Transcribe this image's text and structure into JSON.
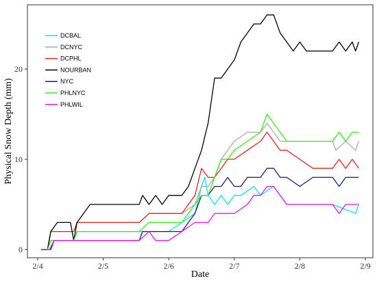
{
  "chart_data": {
    "type": "line",
    "xlabel": "Date",
    "ylabel": "Physical Snow Depth (mm)",
    "x_ticks": [
      "2/4",
      "2/5",
      "2/6",
      "2/7",
      "2/8",
      "2/9"
    ],
    "y_ticks": [
      0,
      10,
      20
    ],
    "xlim": [
      4.0,
      9.0
    ],
    "ylim": [
      -1,
      27
    ],
    "legend_position": "top-left",
    "grid": false,
    "series": [
      {
        "name": "DCBAL",
        "color": "#00e5ee",
        "points": [
          [
            4.05,
            0
          ],
          [
            4.18,
            0
          ],
          [
            4.25,
            1
          ],
          [
            4.55,
            1
          ],
          [
            4.6,
            2
          ],
          [
            5.6,
            2
          ],
          [
            5.7,
            2
          ],
          [
            5.8,
            2
          ],
          [
            6.0,
            2
          ],
          [
            6.2,
            3
          ],
          [
            6.4,
            4
          ],
          [
            6.5,
            7
          ],
          [
            6.55,
            8
          ],
          [
            6.6,
            6
          ],
          [
            6.7,
            5
          ],
          [
            6.8,
            6
          ],
          [
            6.9,
            5
          ],
          [
            7.0,
            6
          ],
          [
            7.1,
            6
          ],
          [
            7.3,
            7
          ],
          [
            7.4,
            6
          ],
          [
            7.6,
            7
          ],
          [
            7.7,
            6
          ],
          [
            7.8,
            5
          ],
          [
            8.0,
            5
          ],
          [
            8.5,
            5
          ],
          [
            8.85,
            4
          ],
          [
            8.9,
            5
          ]
        ]
      },
      {
        "name": "DCNYC",
        "color": "#aaaaaa",
        "points": [
          [
            4.05,
            0
          ],
          [
            4.15,
            0
          ],
          [
            4.2,
            2
          ],
          [
            4.55,
            2
          ],
          [
            4.6,
            3
          ],
          [
            5.55,
            3
          ],
          [
            5.7,
            4
          ],
          [
            6.0,
            4
          ],
          [
            6.2,
            4
          ],
          [
            6.4,
            5
          ],
          [
            6.5,
            7
          ],
          [
            6.6,
            7
          ],
          [
            6.7,
            8
          ],
          [
            6.8,
            10
          ],
          [
            6.9,
            11
          ],
          [
            7.0,
            12
          ],
          [
            7.2,
            13
          ],
          [
            7.4,
            13
          ],
          [
            7.5,
            14
          ],
          [
            7.6,
            13
          ],
          [
            7.7,
            12
          ],
          [
            8.0,
            12
          ],
          [
            8.5,
            12
          ],
          [
            8.55,
            11
          ],
          [
            8.7,
            12
          ],
          [
            8.85,
            11
          ],
          [
            8.9,
            12
          ]
        ]
      },
      {
        "name": "DCPHL",
        "color": "#e8201a",
        "points": [
          [
            4.05,
            0
          ],
          [
            4.15,
            0
          ],
          [
            4.2,
            2
          ],
          [
            4.55,
            2
          ],
          [
            4.6,
            3
          ],
          [
            5.55,
            3
          ],
          [
            5.7,
            4
          ],
          [
            6.0,
            4
          ],
          [
            6.2,
            4
          ],
          [
            6.4,
            6
          ],
          [
            6.5,
            9
          ],
          [
            6.6,
            8
          ],
          [
            6.7,
            8
          ],
          [
            6.8,
            9
          ],
          [
            6.9,
            10
          ],
          [
            7.0,
            10
          ],
          [
            7.2,
            11
          ],
          [
            7.4,
            12
          ],
          [
            7.5,
            13
          ],
          [
            7.6,
            12
          ],
          [
            7.7,
            11
          ],
          [
            7.8,
            11
          ],
          [
            8.0,
            10
          ],
          [
            8.2,
            9
          ],
          [
            8.5,
            9
          ],
          [
            8.6,
            10
          ],
          [
            8.7,
            9
          ],
          [
            8.8,
            10
          ],
          [
            8.9,
            9
          ]
        ]
      },
      {
        "name": "NOURBAN",
        "color": "#000000",
        "points": [
          [
            4.05,
            0
          ],
          [
            4.15,
            0
          ],
          [
            4.2,
            2
          ],
          [
            4.3,
            3
          ],
          [
            4.5,
            3
          ],
          [
            4.55,
            1
          ],
          [
            4.6,
            3
          ],
          [
            4.7,
            4
          ],
          [
            4.8,
            5
          ],
          [
            5.55,
            5
          ],
          [
            5.6,
            6
          ],
          [
            5.7,
            5
          ],
          [
            5.8,
            6
          ],
          [
            5.9,
            5
          ],
          [
            6.0,
            6
          ],
          [
            6.2,
            6
          ],
          [
            6.3,
            7
          ],
          [
            6.4,
            9
          ],
          [
            6.5,
            11
          ],
          [
            6.6,
            14
          ],
          [
            6.7,
            19
          ],
          [
            6.8,
            19
          ],
          [
            6.9,
            20
          ],
          [
            7.0,
            21
          ],
          [
            7.1,
            23
          ],
          [
            7.2,
            24
          ],
          [
            7.3,
            25
          ],
          [
            7.4,
            25
          ],
          [
            7.5,
            26
          ],
          [
            7.6,
            26
          ],
          [
            7.7,
            24
          ],
          [
            7.8,
            23
          ],
          [
            7.9,
            22
          ],
          [
            8.0,
            23
          ],
          [
            8.1,
            22
          ],
          [
            8.5,
            22
          ],
          [
            8.6,
            23
          ],
          [
            8.7,
            22
          ],
          [
            8.8,
            23
          ],
          [
            8.85,
            22
          ],
          [
            8.9,
            23
          ]
        ]
      },
      {
        "name": "NYC",
        "color": "#1a1a80",
        "points": [
          [
            4.05,
            0
          ],
          [
            4.2,
            0
          ],
          [
            4.25,
            1
          ],
          [
            4.55,
            1
          ],
          [
            4.6,
            1
          ],
          [
            5.0,
            1
          ],
          [
            5.55,
            1
          ],
          [
            5.6,
            2
          ],
          [
            6.0,
            2
          ],
          [
            6.2,
            2
          ],
          [
            6.3,
            3
          ],
          [
            6.4,
            4
          ],
          [
            6.5,
            6
          ],
          [
            6.6,
            6
          ],
          [
            6.7,
            7
          ],
          [
            6.8,
            7
          ],
          [
            6.9,
            8
          ],
          [
            7.0,
            7
          ],
          [
            7.1,
            7
          ],
          [
            7.2,
            8
          ],
          [
            7.4,
            8
          ],
          [
            7.5,
            9
          ],
          [
            7.6,
            9
          ],
          [
            7.7,
            8
          ],
          [
            7.8,
            8
          ],
          [
            8.0,
            7
          ],
          [
            8.2,
            8
          ],
          [
            8.5,
            8
          ],
          [
            8.6,
            7
          ],
          [
            8.7,
            8
          ],
          [
            8.9,
            8
          ]
        ]
      },
      {
        "name": "PHLNYC",
        "color": "#33ee11",
        "points": [
          [
            4.05,
            0
          ],
          [
            4.15,
            0
          ],
          [
            4.2,
            1
          ],
          [
            4.55,
            1
          ],
          [
            4.6,
            2
          ],
          [
            5.55,
            2
          ],
          [
            5.7,
            3
          ],
          [
            6.0,
            3
          ],
          [
            6.2,
            3
          ],
          [
            6.4,
            5
          ],
          [
            6.5,
            6
          ],
          [
            6.6,
            6
          ],
          [
            6.7,
            8
          ],
          [
            6.8,
            10
          ],
          [
            6.9,
            10
          ],
          [
            7.0,
            11
          ],
          [
            7.2,
            12
          ],
          [
            7.4,
            13
          ],
          [
            7.5,
            15
          ],
          [
            7.6,
            14
          ],
          [
            7.7,
            13
          ],
          [
            7.8,
            12
          ],
          [
            8.0,
            12
          ],
          [
            8.5,
            12
          ],
          [
            8.6,
            13
          ],
          [
            8.7,
            12
          ],
          [
            8.8,
            13
          ],
          [
            8.9,
            13
          ]
        ]
      },
      {
        "name": "PHLWIL",
        "color": "#ee11ee",
        "points": [
          [
            4.05,
            0
          ],
          [
            4.18,
            0
          ],
          [
            4.25,
            1
          ],
          [
            4.55,
            1
          ],
          [
            4.6,
            1
          ],
          [
            5.0,
            1
          ],
          [
            5.55,
            1
          ],
          [
            5.7,
            2
          ],
          [
            5.8,
            1
          ],
          [
            6.0,
            1
          ],
          [
            6.2,
            2
          ],
          [
            6.4,
            3
          ],
          [
            6.6,
            3
          ],
          [
            6.7,
            4
          ],
          [
            7.0,
            4
          ],
          [
            7.2,
            5
          ],
          [
            7.3,
            6
          ],
          [
            7.4,
            6
          ],
          [
            7.5,
            7
          ],
          [
            7.6,
            7
          ],
          [
            7.7,
            6
          ],
          [
            7.8,
            5
          ],
          [
            8.0,
            5
          ],
          [
            8.5,
            5
          ],
          [
            8.6,
            4
          ],
          [
            8.7,
            5
          ],
          [
            8.9,
            5
          ]
        ]
      }
    ]
  }
}
